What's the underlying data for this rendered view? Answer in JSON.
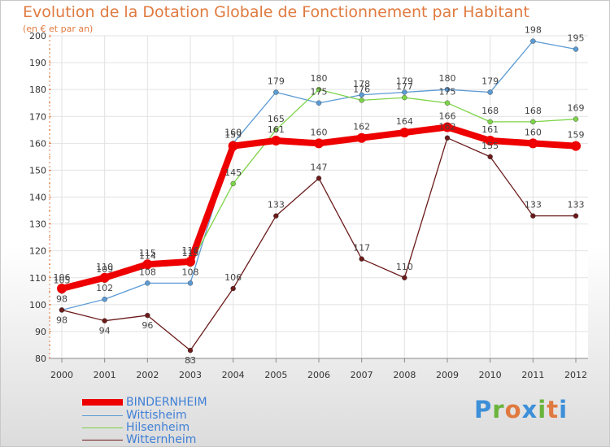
{
  "chart_data": {
    "type": "line",
    "title": "Evolution de la Dotation Globale de Fonctionnement par Habitant",
    "subtitle": "(en € et par an)",
    "x": [
      "2000",
      "2001",
      "2002",
      "2003",
      "2004",
      "2005",
      "2006",
      "2007",
      "2008",
      "2009",
      "2010",
      "2011",
      "2012"
    ],
    "yticks": [
      "80",
      "90",
      "100",
      "110",
      "120",
      "130",
      "140",
      "150",
      "160",
      "170",
      "180",
      "190",
      "200"
    ],
    "ylim": [
      80,
      200
    ],
    "grid": true,
    "series": [
      {
        "name": "BINDERNHEIM",
        "color": "#ee0000",
        "values": [
          106,
          110,
          115,
          116,
          159,
          161,
          160,
          162,
          164,
          166,
          161,
          160,
          159
        ],
        "labels": [
          "106",
          "110",
          "115",
          "116",
          "159",
          "161",
          "160",
          "162",
          "164",
          "166",
          "161",
          "160",
          "159"
        ]
      },
      {
        "name": "Wittisheim",
        "color": "#5b9bd5",
        "values": [
          98,
          102,
          108,
          108,
          160,
          179,
          175,
          178,
          179,
          180,
          179,
          198,
          195
        ],
        "labels": [
          "98",
          "102",
          "108",
          "108",
          "160",
          "179",
          "175",
          "178",
          "179",
          "180",
          "179",
          "198",
          "195"
        ]
      },
      {
        "name": "Hilsenheim",
        "color": "#7ed348",
        "values": [
          105,
          109,
          114,
          115,
          145,
          165,
          180,
          176,
          177,
          175,
          168,
          168,
          169
        ],
        "labels": [
          "105",
          "109",
          "114",
          "115",
          "145",
          "165",
          "180",
          "176",
          "177",
          "175",
          "168",
          "168",
          "169"
        ]
      },
      {
        "name": "Witternheim",
        "color": "#6b1b1b",
        "values": [
          98,
          94,
          96,
          83,
          106,
          133,
          147,
          117,
          110,
          162,
          155,
          133,
          133
        ],
        "labels": [
          "98",
          "94",
          "96",
          "83",
          "106",
          "133",
          "147",
          "117",
          "110",
          "162",
          "155",
          "133",
          "133"
        ]
      }
    ]
  },
  "brand": {
    "logo_letters": [
      "P",
      "r",
      "o",
      "x",
      "i",
      "t",
      "i"
    ],
    "logo_colors": [
      "#3d8fd8",
      "#6ab43c",
      "#e07a3f",
      "#3d8fd8",
      "#6ab43c",
      "#e07a3f",
      "#3d8fd8"
    ]
  }
}
